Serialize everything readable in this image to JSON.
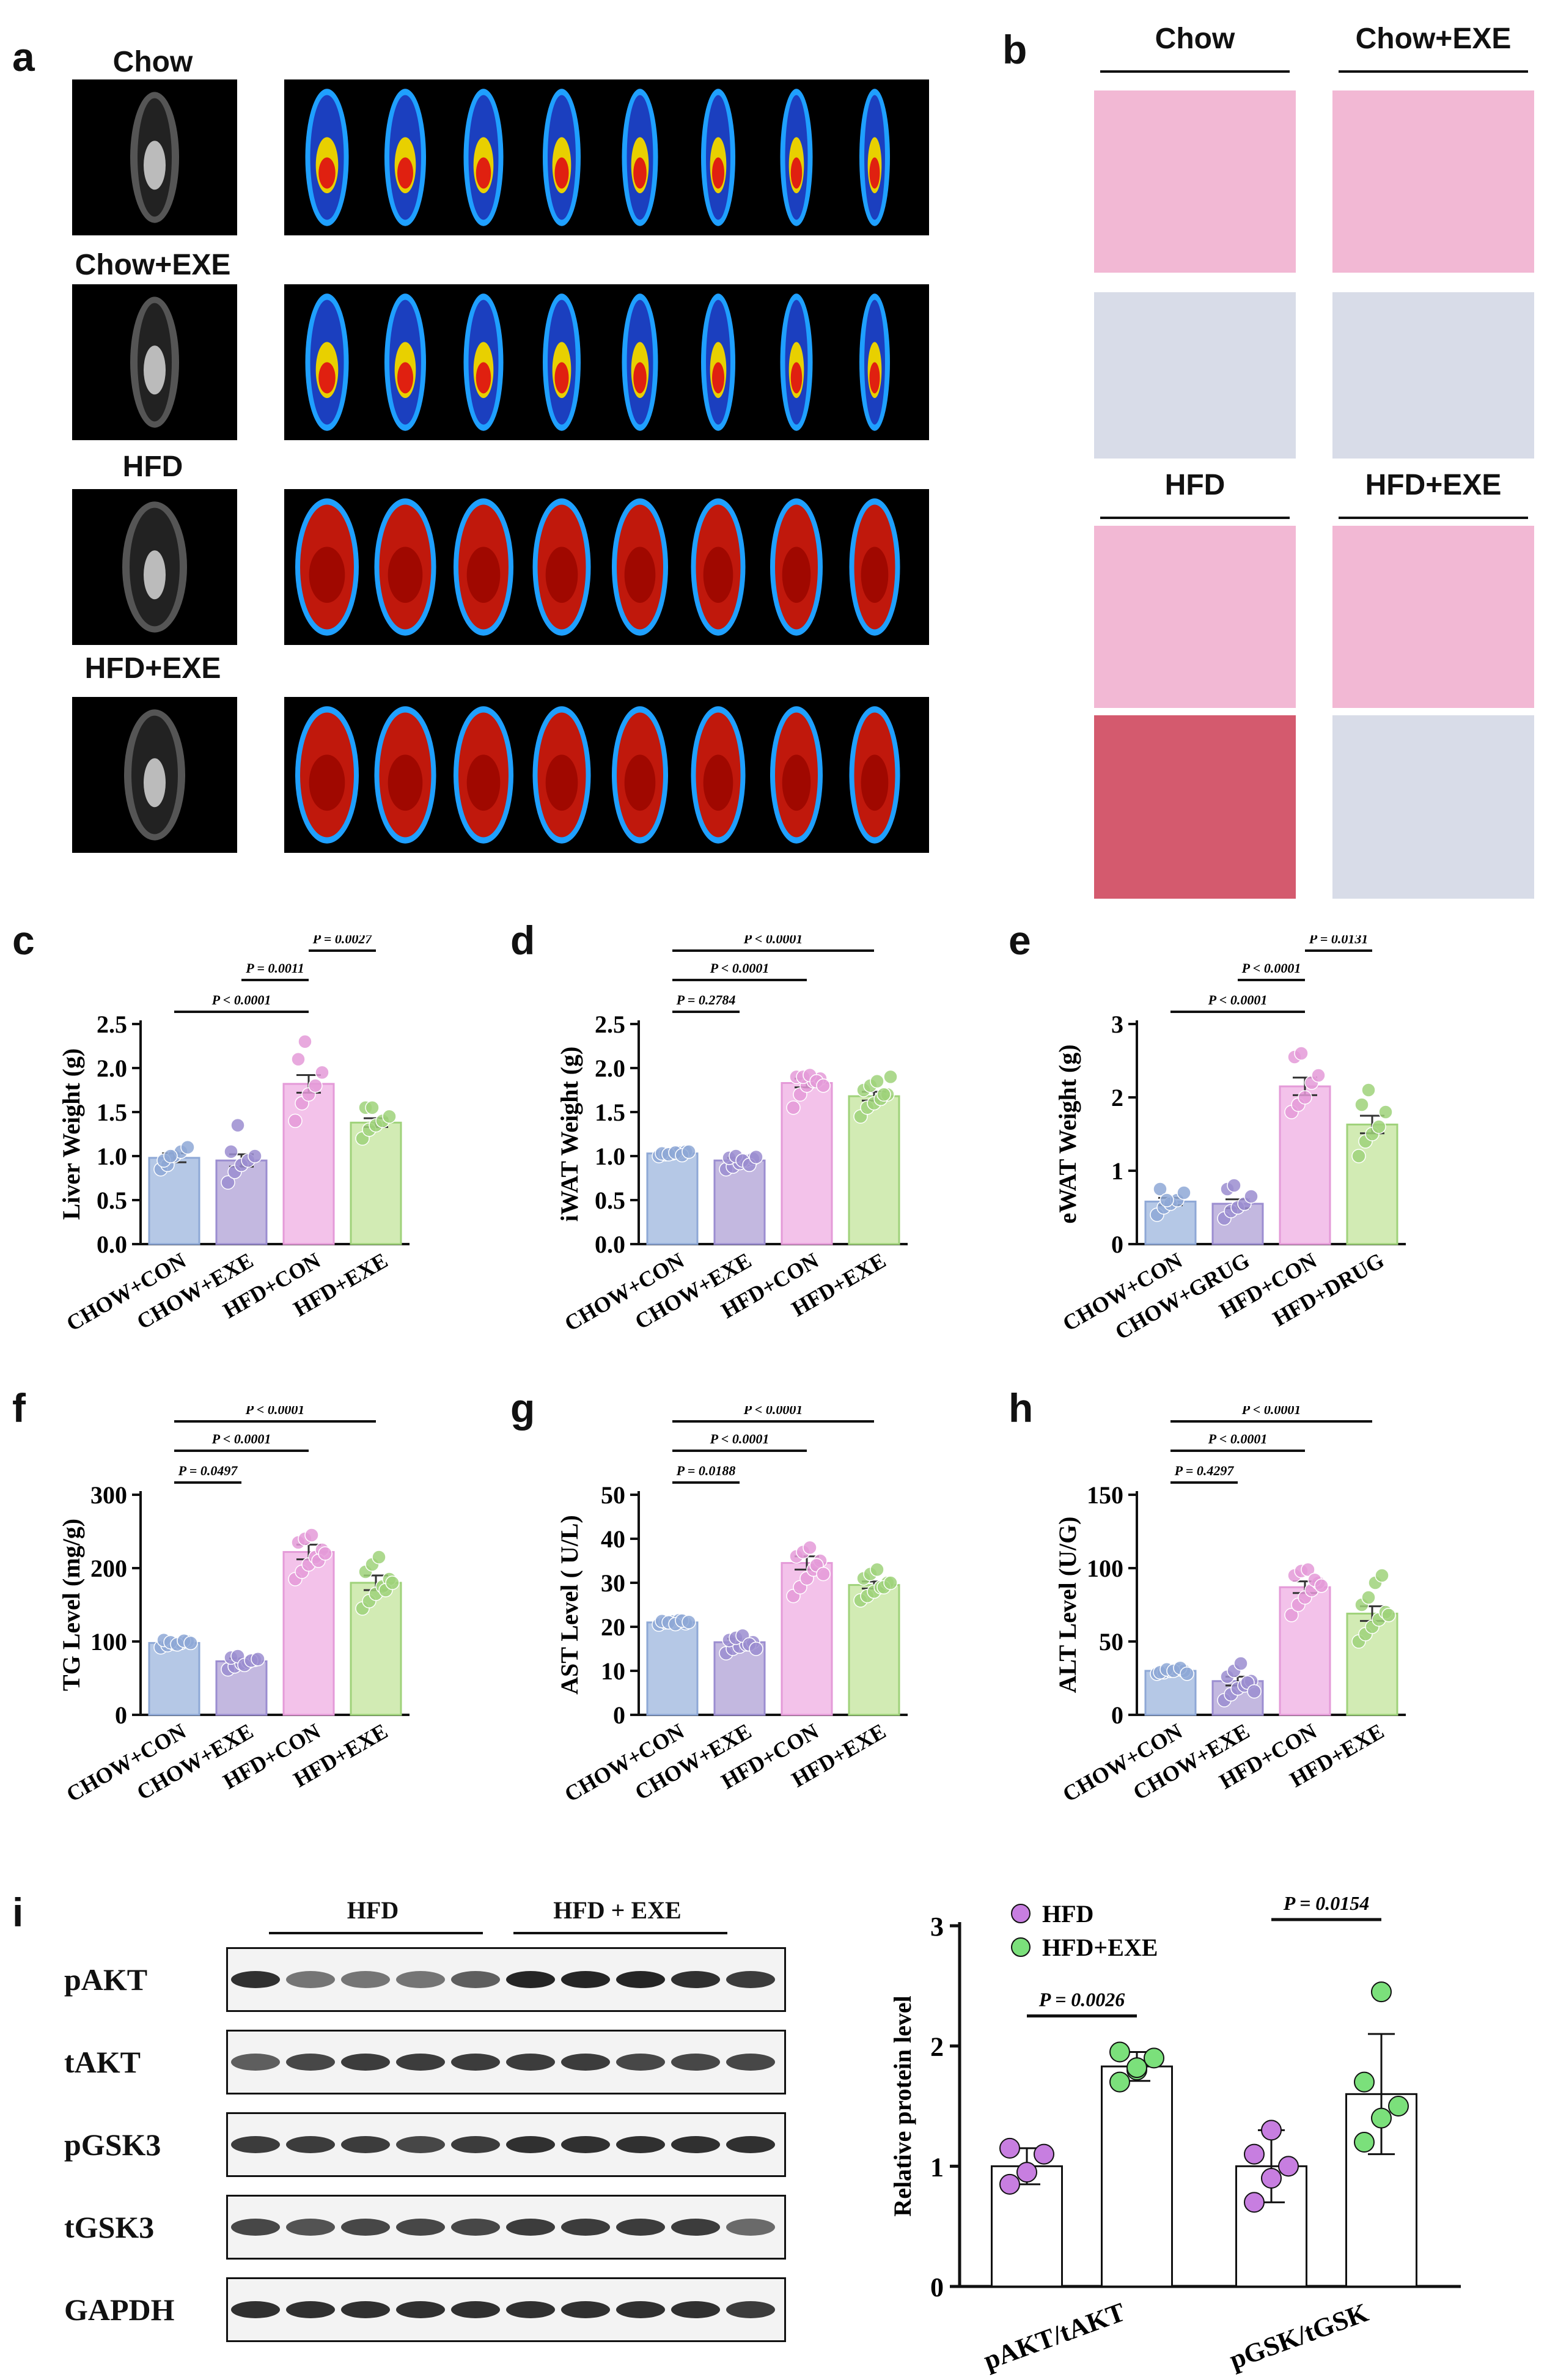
{
  "panel_labels": {
    "a": "a",
    "b": "b",
    "c": "c",
    "d": "d",
    "e": "e",
    "f": "f",
    "g": "g",
    "h": "h",
    "i": "i"
  },
  "panel_a": {
    "groups": [
      "Chow",
      "Chow+EXE",
      "HFD",
      "HFD+EXE"
    ],
    "fat_levels": [
      0.25,
      0.25,
      0.9,
      0.75
    ]
  },
  "panel_b": {
    "groups": [
      "Chow",
      "Chow+EXE",
      "HFD",
      "HFD+EXE"
    ]
  },
  "panel_i": {
    "western_groups": [
      "HFD",
      "HFD + EXE"
    ],
    "proteins": [
      "pAKT",
      "tAKT",
      "pGSK3",
      "tGSK3",
      "GAPDH"
    ]
  },
  "colors": {
    "chow_con": "#b5c8e6",
    "chow_exe": "#c3b8e0",
    "hfd_con": "#f3c2ea",
    "hfd_exe": "#d2ebb4",
    "chow_con_pt": "#8ea8d6",
    "chow_exe_pt": "#9b8dd0",
    "hfd_con_pt": "#e49ad8",
    "hfd_exe_pt": "#9fd27a",
    "i_hfd": "#c77ee0",
    "i_hfdexe": "#7be07b"
  },
  "chart_data": [
    {
      "id": "c",
      "type": "bar",
      "ylabel": "Liver Weight (g)",
      "categories": [
        "CHOW+CON",
        "CHOW+EXE",
        "HFD+CON",
        "HFD+EXE"
      ],
      "values": [
        0.98,
        0.95,
        1.82,
        1.38
      ],
      "errors": [
        0.05,
        0.07,
        0.1,
        0.05
      ],
      "ylim": [
        0,
        2.5
      ],
      "yticks": [
        "0.0",
        "0.5",
        "1.0",
        "1.5",
        "2.0",
        "2.5"
      ],
      "ytick_values": [
        0,
        0.5,
        1,
        1.5,
        2,
        2.5
      ],
      "points": [
        [
          0.85,
          0.9,
          1.0,
          1.05,
          1.1,
          0.95,
          1.0
        ],
        [
          0.7,
          0.82,
          0.9,
          0.95,
          1.0,
          1.05,
          1.35
        ],
        [
          1.4,
          1.6,
          1.7,
          1.8,
          1.95,
          2.1,
          2.3
        ],
        [
          1.2,
          1.3,
          1.35,
          1.4,
          1.45,
          1.55,
          1.55
        ]
      ],
      "comparisons": [
        {
          "pair": [
            0,
            2
          ],
          "label": "P < 0.0001",
          "level": 0
        },
        {
          "pair": [
            1,
            2
          ],
          "label": "P = 0.0011",
          "level": 1
        },
        {
          "pair": [
            2,
            3
          ],
          "label": "P = 0.0027",
          "level": 2
        }
      ]
    },
    {
      "id": "d",
      "type": "bar",
      "ylabel": "iWAT Weight (g)",
      "categories": [
        "CHOW+CON",
        "CHOW+EXE",
        "HFD+CON",
        "HFD+EXE"
      ],
      "values": [
        1.03,
        0.95,
        1.83,
        1.68
      ],
      "errors": [
        0.02,
        0.03,
        0.05,
        0.05
      ],
      "ylim": [
        0,
        2.5
      ],
      "yticks": [
        "0.0",
        "0.5",
        "1.0",
        "1.5",
        "2.0",
        "2.5"
      ],
      "ytick_values": [
        0,
        0.5,
        1,
        1.5,
        2,
        2.5
      ],
      "points": [
        [
          1.0,
          1.02,
          1.03,
          1.04,
          1.05,
          1.03,
          1.02,
          1.04,
          1.01,
          1.05
        ],
        [
          0.85,
          0.88,
          0.92,
          0.95,
          0.97,
          0.98,
          1.0,
          0.95,
          0.9,
          0.99
        ],
        [
          1.55,
          1.7,
          1.8,
          1.85,
          1.88,
          1.9,
          1.9,
          1.92,
          1.85,
          1.8
        ],
        [
          1.45,
          1.55,
          1.6,
          1.65,
          1.7,
          1.75,
          1.8,
          1.85,
          1.7,
          1.9
        ]
      ],
      "comparisons": [
        {
          "pair": [
            0,
            1
          ],
          "label": "P = 0.2784",
          "level": 0
        },
        {
          "pair": [
            0,
            2
          ],
          "label": "P < 0.0001",
          "level": 1
        },
        {
          "pair": [
            0,
            3
          ],
          "label": "P < 0.0001",
          "level": 2
        }
      ]
    },
    {
      "id": "e",
      "type": "bar",
      "ylabel": "eWAT Weight (g)",
      "categories": [
        "CHOW+CON",
        "CHOW+GRUG",
        "HFD+CON",
        "HFD+DRUG"
      ],
      "values": [
        0.58,
        0.55,
        2.15,
        1.63
      ],
      "errors": [
        0.05,
        0.06,
        0.12,
        0.12
      ],
      "ylim": [
        0,
        3
      ],
      "yticks": [
        "0",
        "1",
        "2",
        "3"
      ],
      "ytick_values": [
        0,
        1,
        2,
        3
      ],
      "points": [
        [
          0.4,
          0.5,
          0.55,
          0.6,
          0.7,
          0.75,
          0.6
        ],
        [
          0.35,
          0.45,
          0.5,
          0.55,
          0.65,
          0.75,
          0.8
        ],
        [
          1.8,
          1.9,
          2.0,
          2.2,
          2.3,
          2.55,
          2.6
        ],
        [
          1.2,
          1.4,
          1.5,
          1.6,
          1.8,
          1.9,
          2.1
        ]
      ],
      "comparisons": [
        {
          "pair": [
            0,
            2
          ],
          "label": "P < 0.0001",
          "level": 0
        },
        {
          "pair": [
            1,
            2
          ],
          "label": "P < 0.0001",
          "level": 1
        },
        {
          "pair": [
            2,
            3
          ],
          "label": "P = 0.0131",
          "level": 2
        }
      ]
    },
    {
      "id": "f",
      "type": "bar",
      "ylabel": "TG Level (mg/g)",
      "categories": [
        "CHOW+CON",
        "CHOW+EXE",
        "HFD+CON",
        "HFD+EXE"
      ],
      "values": [
        98,
        73,
        222,
        180
      ],
      "errors": [
        3,
        4,
        10,
        10
      ],
      "ylim": [
        0,
        300
      ],
      "yticks": [
        "0",
        "100",
        "200",
        "300"
      ],
      "ytick_values": [
        0,
        100,
        200,
        300
      ],
      "points": [
        [
          92,
          95,
          97,
          98,
          100,
          102,
          99,
          96,
          101,
          98
        ],
        [
          62,
          66,
          70,
          72,
          75,
          78,
          80,
          68,
          74,
          76
        ],
        [
          185,
          195,
          205,
          215,
          225,
          235,
          240,
          245,
          210,
          220
        ],
        [
          145,
          155,
          165,
          175,
          185,
          195,
          205,
          215,
          170,
          180
        ]
      ],
      "comparisons": [
        {
          "pair": [
            0,
            1
          ],
          "label": "P = 0.0497",
          "level": 0
        },
        {
          "pair": [
            0,
            2
          ],
          "label": "P < 0.0001",
          "level": 1
        },
        {
          "pair": [
            0,
            3
          ],
          "label": "P < 0.0001",
          "level": 2
        }
      ]
    },
    {
      "id": "g",
      "type": "bar",
      "ylabel": "AST Level ( U/L)",
      "categories": [
        "CHOW+CON",
        "CHOW+EXE",
        "HFD+CON",
        "HFD+EXE"
      ],
      "values": [
        21,
        16.5,
        34.5,
        29.5
      ],
      "errors": [
        0.3,
        0.8,
        1.5,
        0.8
      ],
      "ylim": [
        0,
        50
      ],
      "yticks": [
        "0",
        "10",
        "20",
        "30",
        "40",
        "50"
      ],
      "ytick_values": [
        0,
        10,
        20,
        30,
        40,
        50
      ],
      "points": [
        [
          20.5,
          21,
          21.2,
          21.5,
          20.8,
          21.3,
          21,
          20.6,
          21.4,
          21.1
        ],
        [
          14,
          15,
          15.5,
          16,
          16.5,
          17,
          17.5,
          18,
          16,
          15
        ],
        [
          27,
          29,
          31,
          33,
          35,
          36,
          37,
          38,
          34,
          32
        ],
        [
          26,
          27,
          28,
          29,
          30,
          31,
          32,
          33,
          29,
          30
        ]
      ],
      "comparisons": [
        {
          "pair": [
            0,
            1
          ],
          "label": "P = 0.0188",
          "level": 0
        },
        {
          "pair": [
            0,
            2
          ],
          "label": "P < 0.0001",
          "level": 1
        },
        {
          "pair": [
            0,
            3
          ],
          "label": "P < 0.0001",
          "level": 2
        }
      ]
    },
    {
      "id": "h",
      "type": "bar",
      "ylabel": "ALT Level (U/G)",
      "categories": [
        "CHOW+CON",
        "CHOW+EXE",
        "HFD+CON",
        "HFD+EXE"
      ],
      "values": [
        30,
        23,
        87,
        69
      ],
      "errors": [
        1,
        3,
        4,
        5
      ],
      "ylim": [
        0,
        150
      ],
      "yticks": [
        "0",
        "50",
        "100",
        "150"
      ],
      "ytick_values": [
        0,
        50,
        100,
        150
      ],
      "points": [
        [
          28,
          29,
          30,
          31,
          30,
          29,
          31,
          30,
          32,
          28
        ],
        [
          10,
          14,
          18,
          20,
          23,
          26,
          30,
          35,
          22,
          16
        ],
        [
          68,
          75,
          80,
          85,
          90,
          95,
          98,
          99,
          92,
          88
        ],
        [
          50,
          55,
          60,
          65,
          70,
          75,
          80,
          90,
          95,
          68
        ]
      ],
      "comparisons": [
        {
          "pair": [
            0,
            1
          ],
          "label": "P = 0.4297",
          "level": 0
        },
        {
          "pair": [
            0,
            2
          ],
          "label": "P < 0.0001",
          "level": 1
        },
        {
          "pair": [
            0,
            3
          ],
          "label": "P < 0.0001",
          "level": 2
        }
      ]
    },
    {
      "id": "i",
      "type": "bar",
      "ylabel": "Relative protein level",
      "categories": [
        "pAKT/tAKT",
        "pGSK/tGSK"
      ],
      "series": [
        {
          "name": "HFD",
          "values": [
            1.0,
            1.0
          ],
          "errors": [
            0.15,
            0.3
          ]
        },
        {
          "name": "HFD+EXE",
          "values": [
            1.83,
            1.6
          ],
          "errors": [
            0.12,
            0.5
          ]
        }
      ],
      "ylim": [
        0,
        3
      ],
      "yticks": [
        "0",
        "1",
        "2",
        "3"
      ],
      "ytick_values": [
        0,
        1,
        2,
        3
      ],
      "points": [
        [
          [
            0.85,
            0.95,
            1.1,
            1.15
          ],
          [
            1.7,
            1.8,
            1.9,
            1.95,
            1.82
          ]
        ],
        [
          [
            0.7,
            0.9,
            1.0,
            1.1,
            1.3
          ],
          [
            1.2,
            1.4,
            1.5,
            1.7,
            2.45
          ]
        ]
      ],
      "comparisons": [
        {
          "label": "P = 0.0026",
          "group": 0
        },
        {
          "label": "P = 0.0154",
          "group": 1
        }
      ]
    }
  ]
}
